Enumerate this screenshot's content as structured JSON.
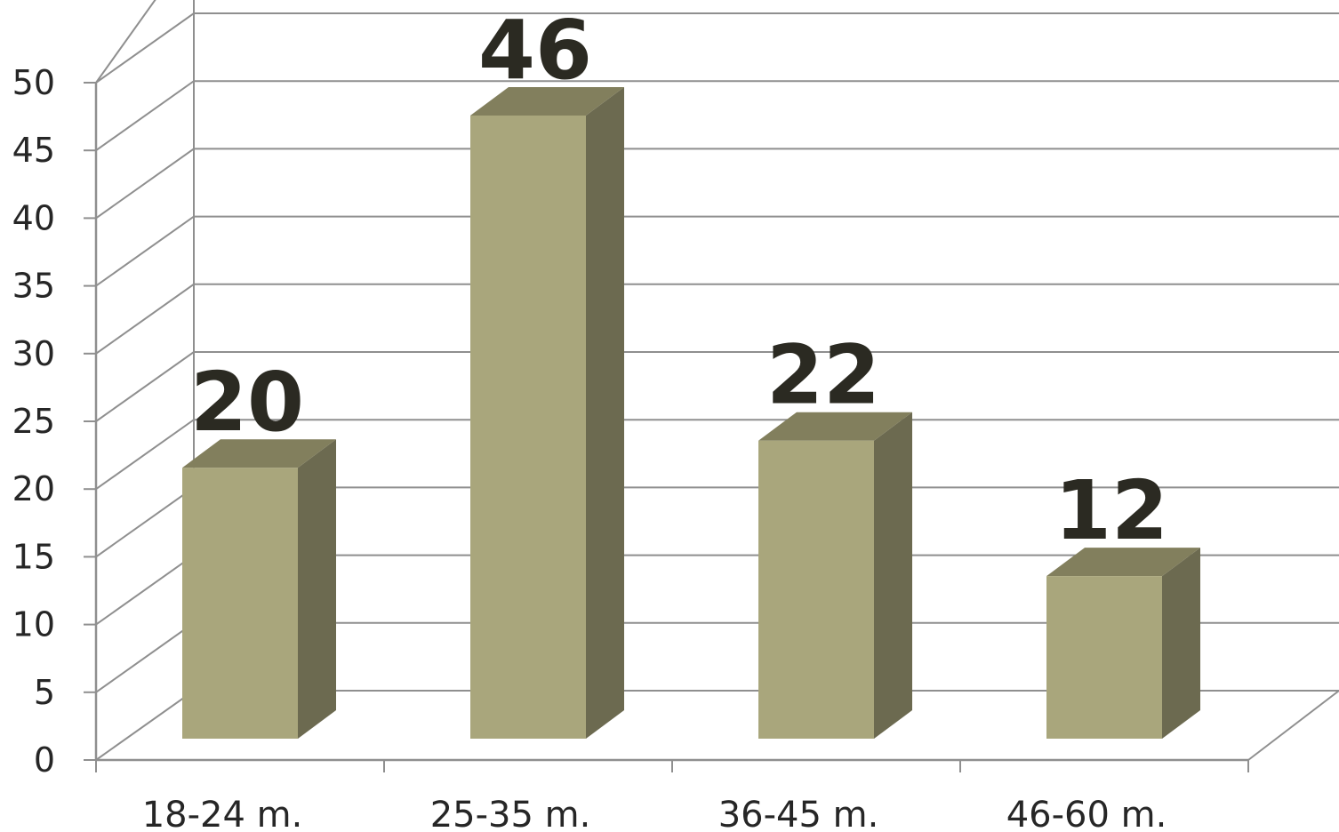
{
  "chart_data": {
    "type": "bar",
    "categories": [
      "18-24 m.",
      "25-35 m.",
      "36-45 m.",
      "46-60 m."
    ],
    "values": [
      20,
      46,
      22,
      12
    ],
    "data_labels": [
      "20",
      "46",
      "22",
      "12"
    ],
    "title": "",
    "xlabel": "",
    "ylabel": "",
    "ylim": [
      0,
      50
    ],
    "yticks": [
      "0",
      "5",
      "10",
      "15",
      "20",
      "25",
      "30",
      "35",
      "40",
      "45",
      "50"
    ],
    "grid": true,
    "legend": "none",
    "style": "3d-column",
    "colors": {
      "bar_front": "#a9a67c",
      "bar_side": "#6c6a50",
      "bar_top": "#827f5d",
      "grid": "#8f8f8f",
      "text": "#262626",
      "data_label": "#2b2a22"
    }
  }
}
